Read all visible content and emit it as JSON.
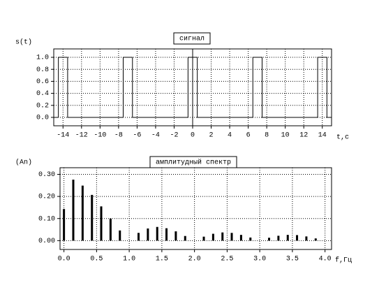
{
  "chart_data": [
    {
      "type": "line",
      "title": "сигнал",
      "ylabel": "s(t)",
      "xlabel": "t,c",
      "x": [
        -15,
        -14.5,
        -14.5,
        -13.5,
        -13.5,
        -7.5,
        -7.5,
        -6.5,
        -6.5,
        -0.5,
        -0.5,
        0.5,
        0.5,
        6.5,
        6.5,
        7.5,
        7.5,
        13.5,
        13.5,
        14.5,
        14.5,
        15
      ],
      "y": [
        0,
        0,
        1,
        1,
        0,
        0,
        1,
        1,
        0,
        0,
        1,
        1,
        0,
        0,
        1,
        1,
        0,
        0,
        1,
        1,
        0,
        0
      ],
      "color": "#000000",
      "xlim": [
        -15,
        15
      ],
      "xticks": [
        -14,
        -12,
        -10,
        -8,
        -6,
        -4,
        -2,
        0,
        2,
        4,
        6,
        8,
        10,
        12,
        14
      ],
      "ylim": [
        -0.14,
        1.14
      ],
      "yticks": [
        {
          "value": 0,
          "label": "0.0"
        },
        0.2,
        0.4,
        0.6,
        0.8,
        {
          "value": 1,
          "label": "1.0"
        }
      ],
      "grid": true
    },
    {
      "type": "bar",
      "title": "амплитудный спектр",
      "ylabel": "(An)",
      "xlabel": "f,Гц",
      "x": [
        0,
        0.143,
        0.286,
        0.429,
        0.571,
        0.714,
        0.857,
        1.143,
        1.286,
        1.429,
        1.571,
        1.714,
        1.857,
        2.143,
        2.286,
        2.429,
        2.571,
        2.714,
        2.857,
        3.143,
        3.286,
        3.429,
        3.571,
        3.714,
        3.857
      ],
      "values": [
        0.143,
        0.276,
        0.249,
        0.207,
        0.155,
        0.1,
        0.046,
        0.035,
        0.055,
        0.062,
        0.056,
        0.042,
        0.021,
        0.018,
        0.031,
        0.037,
        0.035,
        0.026,
        0.014,
        0.013,
        0.022,
        0.026,
        0.025,
        0.019,
        0.01
      ],
      "color": "#000000",
      "xlim": [
        -0.06,
        4.1
      ],
      "xticks": [
        {
          "value": 0,
          "label": "0.0"
        },
        0.5,
        {
          "value": 1,
          "label": "1.0"
        },
        1.5,
        {
          "value": 2,
          "label": "2.0"
        },
        2.5,
        {
          "value": 3,
          "label": "3.0"
        },
        3.5,
        {
          "value": 4,
          "label": "4.0"
        }
      ],
      "ylim": [
        -0.04,
        0.33
      ],
      "yticks": [
        {
          "value": 0,
          "label": "0.00"
        },
        {
          "value": 0.1,
          "label": "0.10"
        },
        {
          "value": 0.2,
          "label": "0.20"
        },
        {
          "value": 0.3,
          "label": "0.30"
        }
      ],
      "grid": true
    }
  ]
}
